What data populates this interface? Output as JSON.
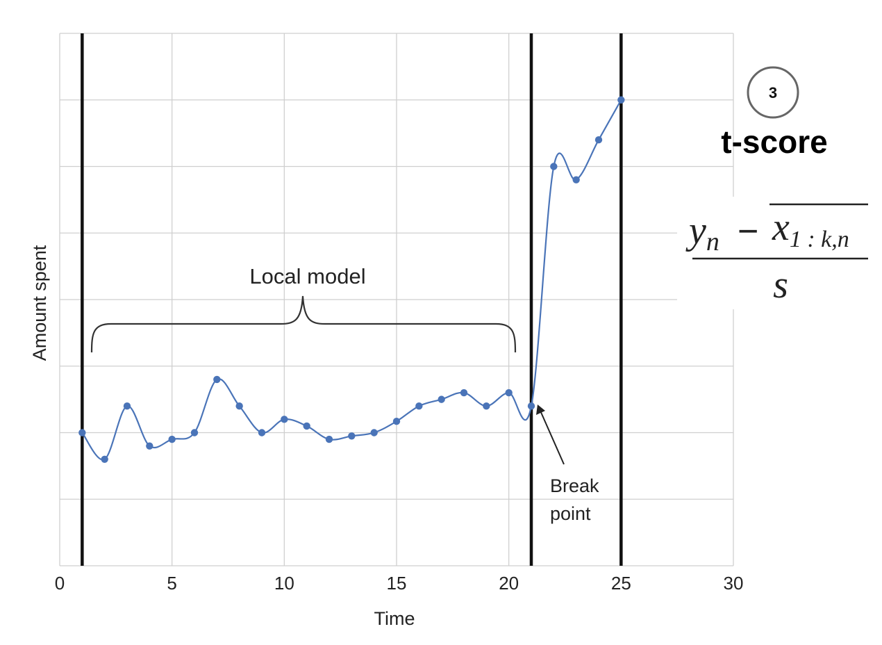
{
  "chart_data": {
    "type": "line",
    "xlabel": "Time",
    "ylabel": "Amount spent",
    "xlim": [
      0,
      30
    ],
    "ylim": [
      0,
      8
    ],
    "xticks": [
      0,
      5,
      10,
      15,
      20,
      25,
      30
    ],
    "grid": true,
    "series": [
      {
        "color": "#4a74b8",
        "x": [
          1,
          2,
          3,
          4,
          5,
          6,
          7,
          8,
          9,
          10,
          11,
          12,
          13,
          14,
          15,
          16,
          17,
          18,
          19,
          20,
          21,
          22,
          23,
          24,
          25
        ],
        "y": [
          2.0,
          1.6,
          2.4,
          1.8,
          1.9,
          2.0,
          2.8,
          2.4,
          2.0,
          2.2,
          2.1,
          1.9,
          1.95,
          2.0,
          2.17,
          2.4,
          2.5,
          2.6,
          2.4,
          2.6,
          2.4,
          6.0,
          5.8,
          6.4,
          7.0
        ]
      }
    ],
    "vertical_lines": [
      1,
      21,
      25
    ],
    "annotations": {
      "local_model": "Local model",
      "break_point_line1": "Break",
      "break_point_line2": "point"
    }
  },
  "badge": {
    "number": "3"
  },
  "heading": "t-score",
  "formula": {
    "numerator_y": "y",
    "numerator_y_sub": "n",
    "minus": "−",
    "numerator_x": "x",
    "numerator_x_sub": "1 : k,n",
    "denominator": "s"
  },
  "colors": {
    "line": "#4a74b8",
    "grid": "#cfcfcf",
    "vline": "#111111"
  }
}
